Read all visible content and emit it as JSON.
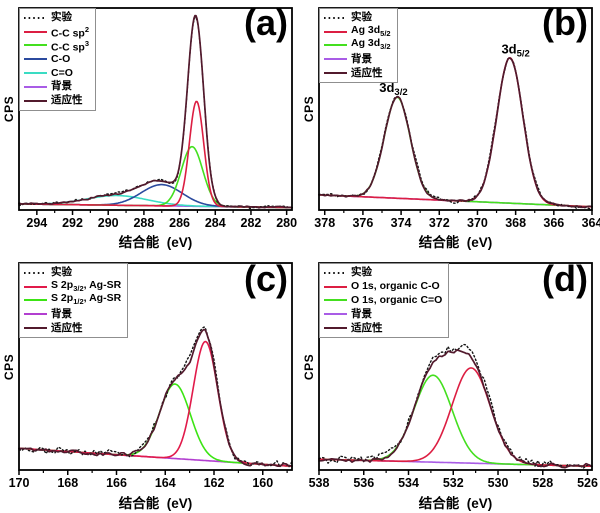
{
  "figure": {
    "ylabel": "CPS",
    "xlabel": "结合能  (eV)"
  },
  "chart_data": [
    {
      "id": "a",
      "panel_label": "(a)",
      "type": "line",
      "xlabel": "结合能  (eV)",
      "ylabel": "CPS",
      "x_axis_reversed": true,
      "x_range": [
        295.0,
        279.7
      ],
      "x_ticks": [
        294,
        292,
        290,
        288,
        286,
        284,
        282,
        280
      ],
      "x_minor_ticks": [
        293,
        291,
        289,
        287,
        285,
        283,
        281
      ],
      "legend": [
        {
          "key": "experimental",
          "label": "实验",
          "parts": [
            {
              "t": "实验"
            }
          ],
          "color": "#141414",
          "line_style": "dotted"
        },
        {
          "key": "cc-sp2",
          "label": "C-C sp2",
          "parts": [
            {
              "t": "C-C sp"
            },
            {
              "t": "2",
              "sup": true
            }
          ],
          "color": "#dc1e42",
          "line_style": "solid"
        },
        {
          "key": "cc-sp3",
          "label": "C-C sp3",
          "parts": [
            {
              "t": "C-C sp"
            },
            {
              "t": "3",
              "sup": true
            }
          ],
          "color": "#44df1f",
          "line_style": "solid"
        },
        {
          "key": "c-o",
          "label": "C-O",
          "parts": [
            {
              "t": "C-O"
            }
          ],
          "color": "#2b4a9e",
          "line_style": "solid"
        },
        {
          "key": "c-dbl-o",
          "label": "C=O",
          "parts": [
            {
              "t": "C=O"
            }
          ],
          "color": "#3adcc3",
          "line_style": "solid"
        },
        {
          "key": "background",
          "label": "背景",
          "parts": [
            {
              "t": "背景"
            }
          ],
          "color": "#a95ce6",
          "line_style": "solid"
        },
        {
          "key": "fit",
          "label": "适应性",
          "parts": [
            {
              "t": "适应性"
            }
          ],
          "color": "#521a2d",
          "line_style": "solid"
        }
      ],
      "series": [
        {
          "key": "background",
          "color": "#a95ce6",
          "style": "solid",
          "width": 1.6,
          "baseline": [
            0.03,
            0.012
          ],
          "peaks": []
        },
        {
          "key": "c-dbl-o",
          "color": "#3adcc3",
          "style": "solid",
          "width": 1.6,
          "baseline": [
            0.03,
            0.012
          ],
          "peaks": [
            {
              "c": 289.5,
              "h": 0.048,
              "s": 1.7
            }
          ]
        },
        {
          "key": "c-o",
          "color": "#2b4a9e",
          "style": "solid",
          "width": 1.6,
          "baseline": [
            0.03,
            0.012
          ],
          "peaks": [
            {
              "c": 287.0,
              "h": 0.105,
              "s": 1.15
            }
          ]
        },
        {
          "key": "cc-sp3",
          "color": "#44df1f",
          "style": "solid",
          "width": 1.6,
          "baseline": [
            0.03,
            0.012
          ],
          "peaks": [
            {
              "c": 285.3,
              "h": 0.295,
              "s": 0.6
            }
          ]
        },
        {
          "key": "cc-sp2",
          "color": "#dc1e42",
          "style": "solid",
          "width": 1.6,
          "baseline": [
            0.03,
            0.012
          ],
          "peaks": [
            {
              "c": 285.05,
              "h": 0.52,
              "s": 0.4
            }
          ]
        },
        {
          "key": "experimental",
          "color": "#141414",
          "style": "dotted",
          "width": 1.4,
          "baseline": [
            0.03,
            0.012
          ],
          "peaks": [
            {
              "c": 285.1,
              "h": 0.915,
              "s": 0.45
            },
            {
              "c": 287.0,
              "h": 0.105,
              "s": 1.15
            },
            {
              "c": 289.5,
              "h": 0.052,
              "s": 1.7
            }
          ],
          "noise": 0.006,
          "seed": 7
        },
        {
          "key": "fit",
          "color": "#521a2d",
          "style": "solid",
          "width": 1.7,
          "baseline": [
            0.03,
            0.012
          ],
          "peaks": [
            {
              "c": 285.1,
              "h": 0.915,
              "s": 0.45
            },
            {
              "c": 287.0,
              "h": 0.105,
              "s": 1.15
            },
            {
              "c": 289.5,
              "h": 0.048,
              "s": 1.7
            }
          ],
          "noise": 0.0035,
          "seed": 3
        }
      ],
      "annotations": []
    },
    {
      "id": "b",
      "panel_label": "(b)",
      "type": "line",
      "xlabel": "结合能  (eV)",
      "ylabel": "CPS",
      "x_axis_reversed": true,
      "x_range": [
        378.3,
        364.0
      ],
      "x_ticks": [
        378,
        376,
        374,
        372,
        370,
        368,
        366,
        364
      ],
      "x_minor_ticks": [
        377,
        375,
        373,
        371,
        369,
        367,
        365
      ],
      "legend": [
        {
          "key": "experimental",
          "label": "实验",
          "parts": [
            {
              "t": "实验"
            }
          ],
          "color": "#141414",
          "line_style": "dotted"
        },
        {
          "key": "ag-3d52",
          "label": "Ag 3d5/2",
          "parts": [
            {
              "t": "Ag 3d"
            },
            {
              "t": "5/2",
              "sub": true
            }
          ],
          "color": "#dc1e42",
          "line_style": "solid"
        },
        {
          "key": "ag-3d32",
          "label": "Ag 3d3/2",
          "parts": [
            {
              "t": "Ag 3d"
            },
            {
              "t": "3/2",
              "sub": true
            }
          ],
          "color": "#44df1f",
          "line_style": "solid"
        },
        {
          "key": "background",
          "label": "背景",
          "parts": [
            {
              "t": "背景"
            }
          ],
          "color": "#a95ce6",
          "line_style": "solid"
        },
        {
          "key": "fit",
          "label": "适应性",
          "parts": [
            {
              "t": "适应性"
            }
          ],
          "color": "#521a2d",
          "line_style": "solid"
        }
      ],
      "series": [
        {
          "key": "background",
          "color": "#a95ce6",
          "style": "solid",
          "width": 1.6,
          "baseline": [
            0.075,
            0.016
          ],
          "peaks": []
        },
        {
          "key": "ag-3d32",
          "color": "#44df1f",
          "style": "solid",
          "width": 1.6,
          "baseline": [
            0.075,
            0.016
          ],
          "peaks": [
            {
              "c": 374.2,
              "h": 0.5,
              "s": 0.68
            }
          ]
        },
        {
          "key": "ag-3d52",
          "color": "#dc1e42",
          "style": "solid",
          "width": 1.6,
          "baseline": [
            0.075,
            0.016
          ],
          "peaks": [
            {
              "c": 368.3,
              "h": 0.72,
              "s": 0.68
            }
          ]
        },
        {
          "key": "experimental",
          "color": "#141414",
          "style": "dotted",
          "width": 1.4,
          "baseline": [
            0.075,
            0.016
          ],
          "peaks": [
            {
              "c": 374.2,
              "h": 0.5,
              "s": 0.7
            },
            {
              "c": 368.3,
              "h": 0.72,
              "s": 0.7
            }
          ],
          "noise": 0.009,
          "seed": 11
        },
        {
          "key": "fit",
          "color": "#521a2d",
          "style": "solid",
          "width": 1.7,
          "baseline": [
            0.075,
            0.016
          ],
          "peaks": [
            {
              "c": 374.2,
              "h": 0.5,
              "s": 0.68
            },
            {
              "c": 368.3,
              "h": 0.72,
              "s": 0.68
            }
          ],
          "noise": 0.004,
          "seed": 5
        }
      ],
      "annotations": [
        {
          "x": 374.4,
          "y": 0.585,
          "label": "3d3/2",
          "parts": [
            {
              "t": "3d"
            },
            {
              "t": "3/2",
              "sub": true
            }
          ]
        },
        {
          "x": 368.0,
          "y": 0.775,
          "label": "3d5/2",
          "parts": [
            {
              "t": "3d"
            },
            {
              "t": "5/2",
              "sub": true
            }
          ]
        }
      ]
    },
    {
      "id": "c",
      "panel_label": "(c)",
      "type": "line",
      "xlabel": "结合能  (eV)",
      "ylabel": "CPS",
      "x_axis_reversed": true,
      "x_range": [
        170.0,
        158.8
      ],
      "x_ticks": [
        170,
        168,
        166,
        164,
        162,
        160
      ],
      "x_minor_ticks": [
        169,
        167,
        165,
        163,
        161,
        159
      ],
      "legend": [
        {
          "key": "experimental",
          "label": "实验",
          "parts": [
            {
              "t": "实验"
            }
          ],
          "color": "#141414",
          "line_style": "dotted"
        },
        {
          "key": "s-2p32",
          "label": "S 2p3/2, Ag-SR",
          "parts": [
            {
              "t": "S 2p"
            },
            {
              "t": "3/2",
              "sub": true
            },
            {
              "t": ", Ag-SR"
            }
          ],
          "color": "#e11a4a",
          "line_style": "solid"
        },
        {
          "key": "s-2p12",
          "label": "S 2p1/2, Ag-SR",
          "parts": [
            {
              "t": "S 2p"
            },
            {
              "t": "1/2",
              "sub": true
            },
            {
              "t": ", Ag-SR"
            }
          ],
          "color": "#3ce414",
          "line_style": "solid"
        },
        {
          "key": "background",
          "label": "背景",
          "parts": [
            {
              "t": "背景"
            }
          ],
          "color": "#b23fd0",
          "line_style": "solid"
        },
        {
          "key": "fit",
          "label": "适应性",
          "parts": [
            {
              "t": "适应性"
            }
          ],
          "color": "#521a2d",
          "line_style": "solid"
        }
      ],
      "series": [
        {
          "key": "background",
          "color": "#b23fd0",
          "style": "solid",
          "width": 1.6,
          "baseline": [
            0.105,
            0.018
          ],
          "peaks": []
        },
        {
          "key": "s-2p12",
          "color": "#3ce414",
          "style": "solid",
          "width": 1.6,
          "baseline": [
            0.105,
            0.018
          ],
          "peaks": [
            {
              "c": 163.6,
              "h": 0.36,
              "s": 0.63
            }
          ]
        },
        {
          "key": "s-2p32",
          "color": "#e11a4a",
          "style": "solid",
          "width": 1.6,
          "baseline": [
            0.105,
            0.018
          ],
          "peaks": [
            {
              "c": 162.35,
              "h": 0.575,
              "s": 0.5
            }
          ]
        },
        {
          "key": "experimental",
          "color": "#141414",
          "style": "dotted",
          "width": 1.4,
          "baseline": [
            0.105,
            0.018
          ],
          "peaks": [
            {
              "c": 163.6,
              "h": 0.36,
              "s": 0.66
            },
            {
              "c": 162.35,
              "h": 0.575,
              "s": 0.52
            }
          ],
          "noise": 0.015,
          "seed": 23
        },
        {
          "key": "fit",
          "color": "#521a2d",
          "style": "solid",
          "width": 1.7,
          "baseline": [
            0.105,
            0.018
          ],
          "peaks": [
            {
              "c": 163.6,
              "h": 0.36,
              "s": 0.63
            },
            {
              "c": 162.35,
              "h": 0.575,
              "s": 0.5
            }
          ],
          "noise": 0.008,
          "seed": 19
        }
      ],
      "annotations": []
    },
    {
      "id": "d",
      "panel_label": "(d)",
      "type": "line",
      "xlabel": "结合能  (eV)",
      "ylabel": "CPS",
      "x_axis_reversed": true,
      "x_range": [
        538.0,
        525.8
      ],
      "x_ticks": [
        538,
        536,
        534,
        532,
        530,
        528,
        526
      ],
      "x_minor_ticks": [
        537,
        535,
        533,
        531,
        529,
        527
      ],
      "legend": [
        {
          "key": "experimental",
          "label": "实验",
          "parts": [
            {
              "t": "实验"
            }
          ],
          "color": "#141414",
          "line_style": "dotted"
        },
        {
          "key": "o1s-c-o",
          "label": "O 1s, organic C-O",
          "parts": [
            {
              "t": "O 1s, organic C-O"
            }
          ],
          "color": "#dc1e42",
          "line_style": "solid"
        },
        {
          "key": "o1s-c-dbl-o",
          "label": "O 1s, organic C=O",
          "parts": [
            {
              "t": "O 1s, organic C=O"
            }
          ],
          "color": "#44df1f",
          "line_style": "solid"
        },
        {
          "key": "background",
          "label": "背景",
          "parts": [
            {
              "t": "背景"
            }
          ],
          "color": "#a95ce6",
          "line_style": "solid"
        },
        {
          "key": "fit",
          "label": "适应性",
          "parts": [
            {
              "t": "适应性"
            }
          ],
          "color": "#521a2d",
          "line_style": "solid"
        }
      ],
      "series": [
        {
          "key": "background",
          "color": "#a95ce6",
          "style": "solid",
          "width": 1.6,
          "baseline": [
            0.052,
            0.018
          ],
          "peaks": []
        },
        {
          "key": "o1s-c-dbl-o",
          "color": "#44df1f",
          "style": "solid",
          "width": 1.6,
          "baseline": [
            0.052,
            0.018
          ],
          "peaks": [
            {
              "c": 532.9,
              "h": 0.42,
              "s": 0.85
            }
          ]
        },
        {
          "key": "o1s-c-o",
          "color": "#dc1e42",
          "style": "solid",
          "width": 1.6,
          "baseline": [
            0.052,
            0.018
          ],
          "peaks": [
            {
              "c": 531.2,
              "h": 0.46,
              "s": 0.85
            }
          ]
        },
        {
          "key": "experimental",
          "color": "#141414",
          "style": "dotted",
          "width": 1.4,
          "baseline": [
            0.052,
            0.018
          ],
          "peaks": [
            {
              "c": 532.9,
              "h": 0.42,
              "s": 0.88
            },
            {
              "c": 531.2,
              "h": 0.46,
              "s": 0.88
            }
          ],
          "noise": 0.018,
          "seed": 31
        },
        {
          "key": "fit",
          "color": "#521a2d",
          "style": "solid",
          "width": 1.7,
          "baseline": [
            0.052,
            0.018
          ],
          "peaks": [
            {
              "c": 532.9,
              "h": 0.42,
              "s": 0.85
            },
            {
              "c": 531.2,
              "h": 0.46,
              "s": 0.85
            }
          ],
          "noise": 0.008,
          "seed": 29
        }
      ],
      "annotations": []
    }
  ]
}
